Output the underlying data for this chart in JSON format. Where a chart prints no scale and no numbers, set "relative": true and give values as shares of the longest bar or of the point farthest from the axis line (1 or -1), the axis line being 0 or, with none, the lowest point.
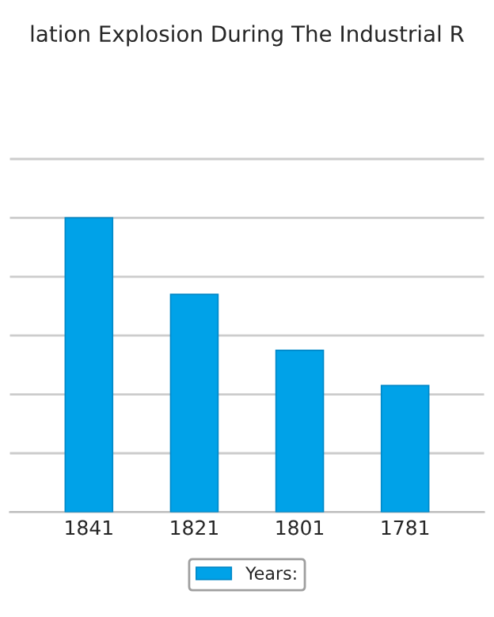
{
  "chart_data": {
    "type": "bar",
    "title": "lation Explosion During The Industrial R",
    "categories": [
      "1841",
      "1821",
      "1801",
      "1781"
    ],
    "series": [
      {
        "name": "Years:",
        "color": "#00a2e8",
        "values": [
          1,
          0.74,
          0.55,
          0.43
        ]
      }
    ],
    "relative": true,
    "grid": "y",
    "legend": "bottom"
  }
}
